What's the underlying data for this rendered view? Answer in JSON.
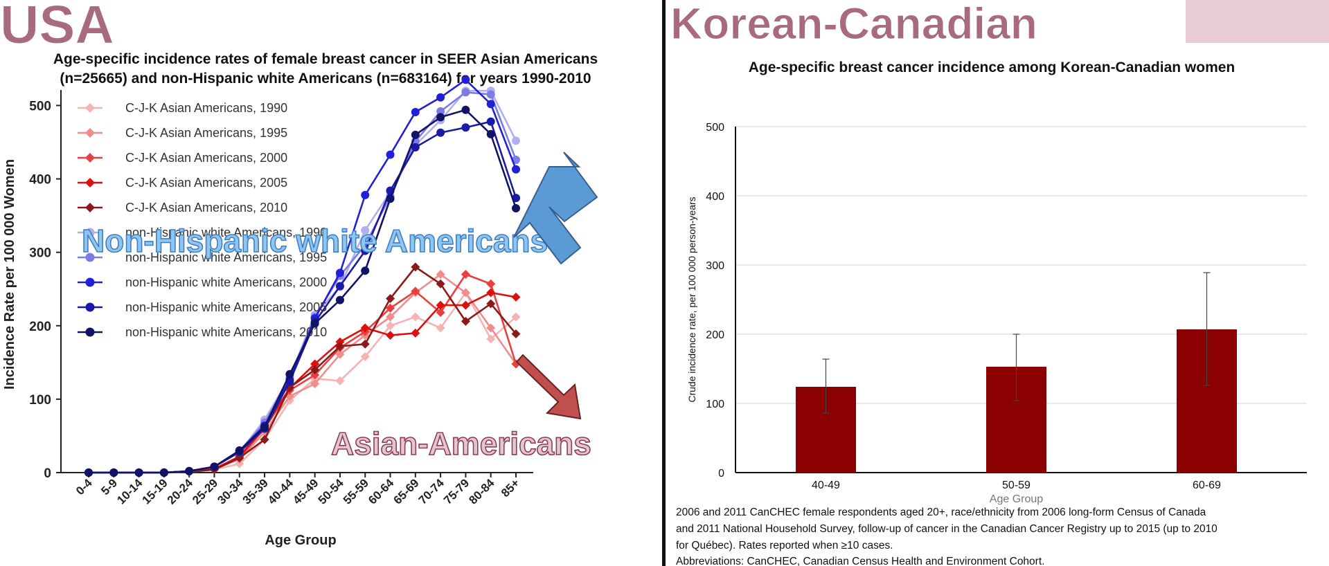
{
  "left": {
    "heading": "USA",
    "heading_color": "#a86b7e",
    "chart_title_line1": "Age-specific incidence rates of female breast cancer in SEER Asian Americans",
    "chart_title_line2": "(n=25665) and non-Hispanic white Americans (n=683164) for years 1990-2010",
    "overlay_label_white": "Non-Hispanic white Americans",
    "overlay_label_asian": "Asian-Americans"
  },
  "right": {
    "heading": "Korean-Canadian",
    "footnote_line1": "2006 and 2011 CanCHEC female respondents aged 20+, race/ethnicity from 2006 long-form Census of Canada",
    "footnote_line2": "and 2011 National Household Survey, follow-up of cancer in the Canadian Cancer Registry up to 2015 (up to 2010",
    "footnote_line3": "for Québec). Rates reported when ≥10 cases.",
    "footnote_line4": "Abbreviations: CanCHEC, Canadian Census Health and Environment Cohort."
  },
  "chart_data": [
    {
      "type": "line",
      "title": "Age-specific incidence rates of female breast cancer in SEER Asian Americans (n=25665) and non-Hispanic white Americans (n=683164) for years 1990-2010",
      "xlabel": "Age Group",
      "ylabel": "Incidence Rate per 100 000 Women",
      "ylim": [
        0,
        540
      ],
      "yticks": [
        0,
        100,
        200,
        300,
        400,
        500
      ],
      "x": [
        "0-4",
        "5-9",
        "10-14",
        "15-19",
        "20-24",
        "25-29",
        "30-34",
        "35-39",
        "40-44",
        "45-49",
        "50-54",
        "55-59",
        "60-64",
        "65-69",
        "70-74",
        "75-79",
        "80-84",
        "85+"
      ],
      "legend_position": "top-left",
      "series": [
        {
          "name": "C-J-K Asian Americans, 1990",
          "color": "#f4b4b4",
          "values": [
            0,
            0,
            0,
            0,
            1,
            4,
            12,
            45,
            98,
            128,
            125,
            158,
            200,
            212,
            197,
            245,
            182,
            212
          ]
        },
        {
          "name": "C-J-K Asian Americans, 1995",
          "color": "#f08c8c",
          "values": [
            0,
            0,
            0,
            0,
            1,
            5,
            18,
            55,
            104,
            121,
            161,
            187,
            212,
            245,
            270,
            245,
            197,
            148
          ]
        },
        {
          "name": "C-J-K Asian Americans, 2000",
          "color": "#e84040",
          "values": [
            0,
            0,
            0,
            0,
            1,
            5,
            20,
            60,
            112,
            133,
            170,
            192,
            224,
            247,
            218,
            270,
            257,
            148
          ]
        },
        {
          "name": "C-J-K Asian Americans, 2005",
          "color": "#dd1010",
          "values": [
            0,
            0,
            0,
            0,
            1,
            5,
            22,
            62,
            115,
            148,
            178,
            197,
            187,
            190,
            228,
            228,
            245,
            239
          ]
        },
        {
          "name": "C-J-K Asian Americans, 2010",
          "color": "#8b1a1a",
          "values": [
            0,
            0,
            0,
            0,
            1,
            4,
            20,
            45,
            116,
            140,
            172,
            175,
            237,
            280,
            257,
            206,
            230,
            189
          ]
        },
        {
          "name": "non-Hispanic white Americans, 1990",
          "color": "#b0b0ee",
          "values": [
            0,
            0,
            0,
            0,
            2,
            8,
            28,
            72,
            130,
            215,
            253,
            330,
            382,
            446,
            480,
            520,
            520,
            452
          ]
        },
        {
          "name": "non-Hispanic white Americans, 1995",
          "color": "#7c7ce6",
          "values": [
            0,
            0,
            0,
            0,
            2,
            8,
            28,
            68,
            128,
            212,
            268,
            310,
            376,
            451,
            492,
            518,
            515,
            426
          ]
        },
        {
          "name": "non-Hispanic white Americans, 2000",
          "color": "#2020d8",
          "values": [
            0,
            0,
            0,
            0,
            2,
            8,
            30,
            64,
            126,
            210,
            272,
            378,
            433,
            491,
            511,
            535,
            502,
            413
          ]
        },
        {
          "name": "non-Hispanic white Americans, 2005",
          "color": "#1a1aa8",
          "values": [
            0,
            0,
            0,
            0,
            2,
            8,
            28,
            60,
            124,
            205,
            254,
            302,
            384,
            443,
            463,
            470,
            478,
            374
          ]
        },
        {
          "name": "non-Hispanic white Americans, 2010",
          "color": "#121266",
          "values": [
            0,
            0,
            0,
            0,
            2,
            8,
            30,
            62,
            134,
            203,
            235,
            275,
            373,
            460,
            484,
            494,
            461,
            360
          ]
        }
      ]
    },
    {
      "type": "bar",
      "title": "Age-specific breast cancer incidence among Korean-Canadian women",
      "xlabel": "Age Group",
      "ylabel": "Crude incidence rate, per 100 000 person-years",
      "ylim": [
        0,
        500
      ],
      "yticks": [
        0,
        100,
        200,
        300,
        400,
        500
      ],
      "categories": [
        "40-49",
        "50-59",
        "60-69"
      ],
      "values": [
        124,
        153,
        207
      ],
      "error_low": [
        86,
        104,
        126
      ],
      "error_high": [
        164,
        200,
        289
      ],
      "bar_color": "#8b0000",
      "grid": true
    }
  ]
}
